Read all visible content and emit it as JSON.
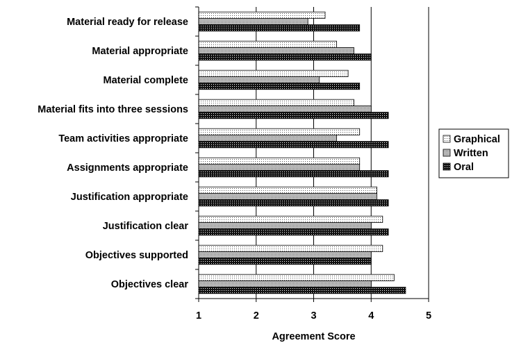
{
  "chart_data": {
    "type": "bar",
    "orientation": "horizontal",
    "categories": [
      "Material ready for release",
      "Material appropriate",
      "Material complete",
      "Material fits into three sessions",
      "Team activities appropriate",
      "Assignments appropriate",
      "Justification appropriate",
      "Justification clear",
      "Objectives supported",
      "Objectives clear"
    ],
    "series": [
      {
        "name": "Graphical",
        "pattern": "light-dots",
        "values": [
          3.2,
          3.4,
          3.6,
          3.7,
          3.8,
          3.8,
          4.1,
          4.2,
          4.2,
          4.4
        ]
      },
      {
        "name": "Written",
        "pattern": "medium-dots",
        "values": [
          2.9,
          3.7,
          3.1,
          4.0,
          3.4,
          3.8,
          4.1,
          4.0,
          4.0,
          4.0
        ]
      },
      {
        "name": "Oral",
        "pattern": "dark-dots",
        "values": [
          3.8,
          4.0,
          3.8,
          4.3,
          4.3,
          4.3,
          4.3,
          4.3,
          4.0,
          4.6
        ]
      }
    ],
    "xlabel": "Agreement Score",
    "ylabel": "",
    "title": "",
    "xlim": [
      1,
      5
    ],
    "xticks": [
      "1",
      "2",
      "3",
      "4",
      "5"
    ],
    "grid": "vertical",
    "legend": "right"
  }
}
